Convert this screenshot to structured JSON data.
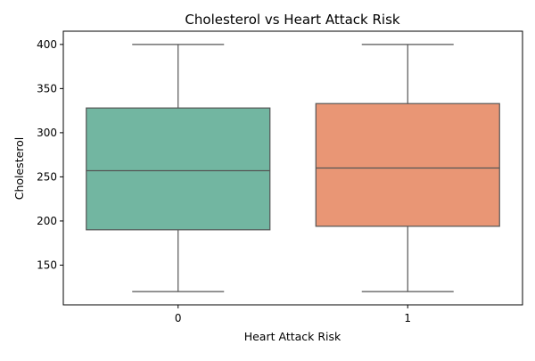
{
  "chart_data": {
    "type": "box",
    "title": "Cholesterol vs Heart Attack Risk",
    "xlabel": "Heart Attack Risk",
    "ylabel": "Cholesterol",
    "ylim": [
      105,
      415
    ],
    "yticks": [
      150,
      200,
      250,
      300,
      350,
      400
    ],
    "grid": false,
    "categories": [
      "0",
      "1"
    ],
    "boxes": [
      {
        "category": "0",
        "whisker_low": 120,
        "q1": 190,
        "median": 257,
        "q3": 328,
        "whisker_high": 400,
        "color": "#72b6a1"
      },
      {
        "category": "1",
        "whisker_low": 120,
        "q1": 194,
        "median": 260,
        "q3": 333,
        "whisker_high": 400,
        "color": "#e99675"
      }
    ],
    "line_color": "#555555"
  }
}
